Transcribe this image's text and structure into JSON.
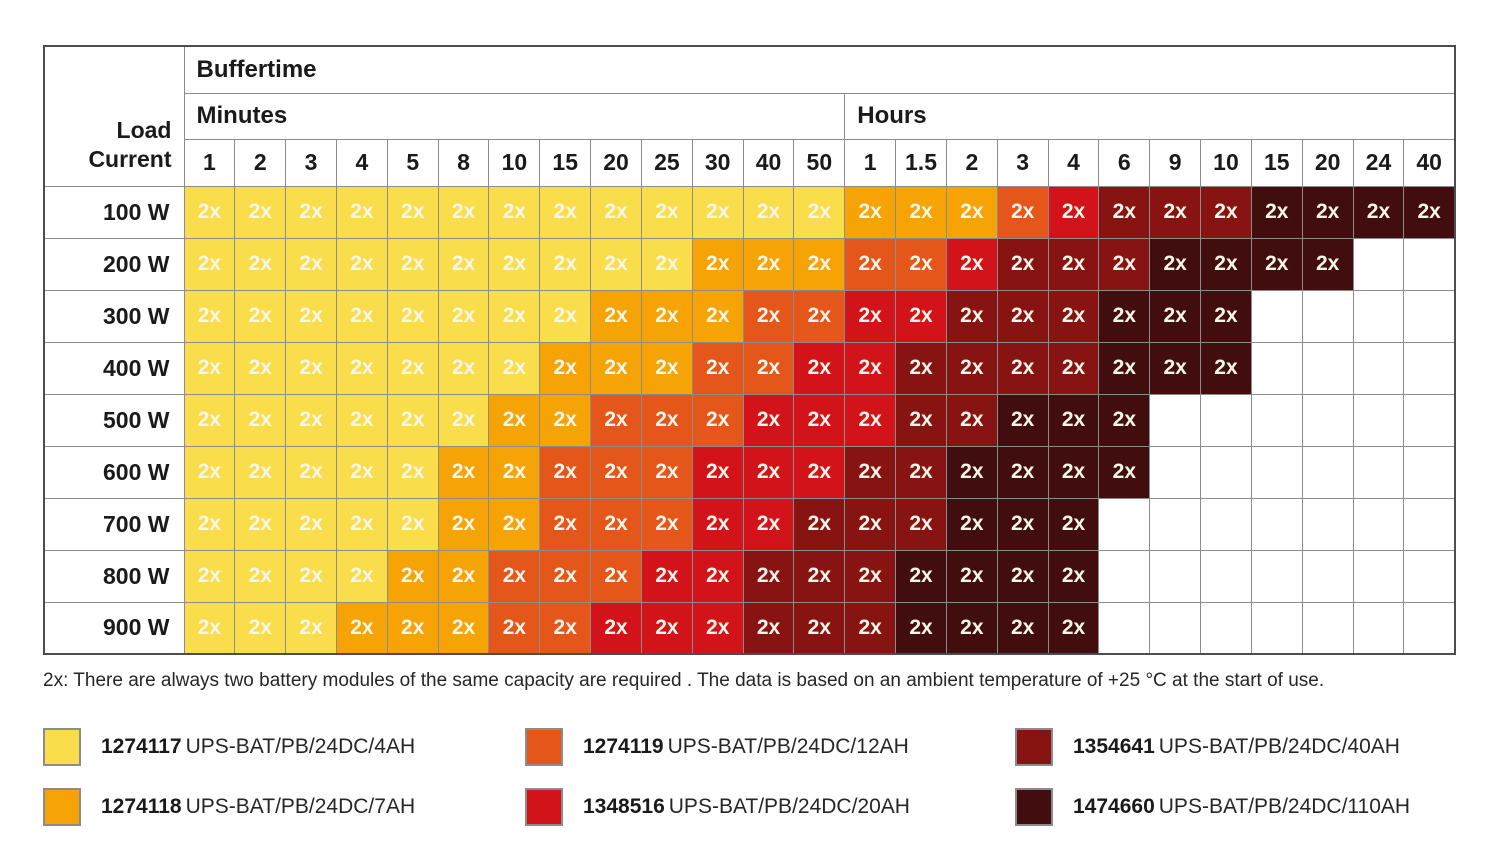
{
  "labels": {
    "corner": "Load Current",
    "buffertime": "Buffertime",
    "minutes": "Minutes",
    "hours": "Hours",
    "cell_text": "2x"
  },
  "colors": {
    "4AH": "#FADD4B",
    "7AH": "#F5A305",
    "12AH": "#E4561A",
    "20AH": "#D2141A",
    "40AH": "#871412",
    "110AH": "#420D0E",
    "empty": "#FFFFFF"
  },
  "chart_data": {
    "type": "heatmap",
    "title": "Buffertime",
    "ylabel": "Load Current",
    "cell_label": "2x",
    "legend_position": "bottom",
    "value_meaning": "required battery module type (2x modules of same capacity)",
    "x_groups": [
      {
        "label": "Minutes",
        "ticks": [
          "1",
          "2",
          "3",
          "4",
          "5",
          "8",
          "10",
          "15",
          "20",
          "25",
          "30",
          "40",
          "50"
        ]
      },
      {
        "label": "Hours",
        "ticks": [
          "1",
          "1.5",
          "2",
          "3",
          "4",
          "6",
          "9",
          "10",
          "15",
          "20",
          "24",
          "40"
        ]
      }
    ],
    "rows": [
      {
        "load": "100 W",
        "cells": [
          "4AH",
          "4AH",
          "4AH",
          "4AH",
          "4AH",
          "4AH",
          "4AH",
          "4AH",
          "4AH",
          "4AH",
          "4AH",
          "4AH",
          "4AH",
          "7AH",
          "7AH",
          "7AH",
          "12AH",
          "20AH",
          "40AH",
          "40AH",
          "40AH",
          "110AH",
          "110AH",
          "110AH",
          "110AH"
        ]
      },
      {
        "load": "200 W",
        "cells": [
          "4AH",
          "4AH",
          "4AH",
          "4AH",
          "4AH",
          "4AH",
          "4AH",
          "4AH",
          "4AH",
          "4AH",
          "7AH",
          "7AH",
          "7AH",
          "12AH",
          "12AH",
          "20AH",
          "40AH",
          "40AH",
          "40AH",
          "110AH",
          "110AH",
          "110AH",
          "110AH",
          null,
          null
        ]
      },
      {
        "load": "300 W",
        "cells": [
          "4AH",
          "4AH",
          "4AH",
          "4AH",
          "4AH",
          "4AH",
          "4AH",
          "4AH",
          "7AH",
          "7AH",
          "7AH",
          "12AH",
          "12AH",
          "20AH",
          "20AH",
          "40AH",
          "40AH",
          "40AH",
          "110AH",
          "110AH",
          "110AH",
          null,
          null,
          null,
          null
        ]
      },
      {
        "load": "400 W",
        "cells": [
          "4AH",
          "4AH",
          "4AH",
          "4AH",
          "4AH",
          "4AH",
          "4AH",
          "7AH",
          "7AH",
          "7AH",
          "12AH",
          "12AH",
          "20AH",
          "20AH",
          "40AH",
          "40AH",
          "40AH",
          "40AH",
          "110AH",
          "110AH",
          "110AH",
          null,
          null,
          null,
          null
        ]
      },
      {
        "load": "500 W",
        "cells": [
          "4AH",
          "4AH",
          "4AH",
          "4AH",
          "4AH",
          "4AH",
          "7AH",
          "7AH",
          "12AH",
          "12AH",
          "12AH",
          "20AH",
          "20AH",
          "20AH",
          "40AH",
          "40AH",
          "110AH",
          "110AH",
          "110AH",
          null,
          null,
          null,
          null,
          null,
          null
        ]
      },
      {
        "load": "600 W",
        "cells": [
          "4AH",
          "4AH",
          "4AH",
          "4AH",
          "4AH",
          "7AH",
          "7AH",
          "12AH",
          "12AH",
          "12AH",
          "20AH",
          "20AH",
          "20AH",
          "40AH",
          "40AH",
          "110AH",
          "110AH",
          "110AH",
          "110AH",
          null,
          null,
          null,
          null,
          null,
          null
        ]
      },
      {
        "load": "700 W",
        "cells": [
          "4AH",
          "4AH",
          "4AH",
          "4AH",
          "4AH",
          "7AH",
          "7AH",
          "12AH",
          "12AH",
          "12AH",
          "20AH",
          "20AH",
          "40AH",
          "40AH",
          "40AH",
          "110AH",
          "110AH",
          "110AH",
          null,
          null,
          null,
          null,
          null,
          null,
          null
        ]
      },
      {
        "load": "800 W",
        "cells": [
          "4AH",
          "4AH",
          "4AH",
          "4AH",
          "7AH",
          "7AH",
          "12AH",
          "12AH",
          "12AH",
          "20AH",
          "20AH",
          "40AH",
          "40AH",
          "40AH",
          "110AH",
          "110AH",
          "110AH",
          "110AH",
          null,
          null,
          null,
          null,
          null,
          null,
          null
        ]
      },
      {
        "load": "900 W",
        "cells": [
          "4AH",
          "4AH",
          "4AH",
          "7AH",
          "7AH",
          "7AH",
          "12AH",
          "12AH",
          "20AH",
          "20AH",
          "20AH",
          "40AH",
          "40AH",
          "40AH",
          "110AH",
          "110AH",
          "110AH",
          "110AH",
          null,
          null,
          null,
          null,
          null,
          null,
          null
        ]
      }
    ]
  },
  "footnote": "2x: There are always two battery modules of the same capacity are required . The data is based on an ambient temperature of +25 °C at the start of use.",
  "legend": [
    {
      "key": "4AH",
      "part": "1274117",
      "desc": "UPS-BAT/PB/24DC/4AH"
    },
    {
      "key": "7AH",
      "part": "1274118",
      "desc": "UPS-BAT/PB/24DC/7AH"
    },
    {
      "key": "12AH",
      "part": "1274119",
      "desc": "UPS-BAT/PB/24DC/12AH"
    },
    {
      "key": "20AH",
      "part": "1348516",
      "desc": "UPS-BAT/PB/24DC/20AH"
    },
    {
      "key": "40AH",
      "part": "1354641",
      "desc": "UPS-BAT/PB/24DC/40AH"
    },
    {
      "key": "110AH",
      "part": "1474660",
      "desc": "UPS-BAT/PB/24DC/110AH"
    }
  ]
}
